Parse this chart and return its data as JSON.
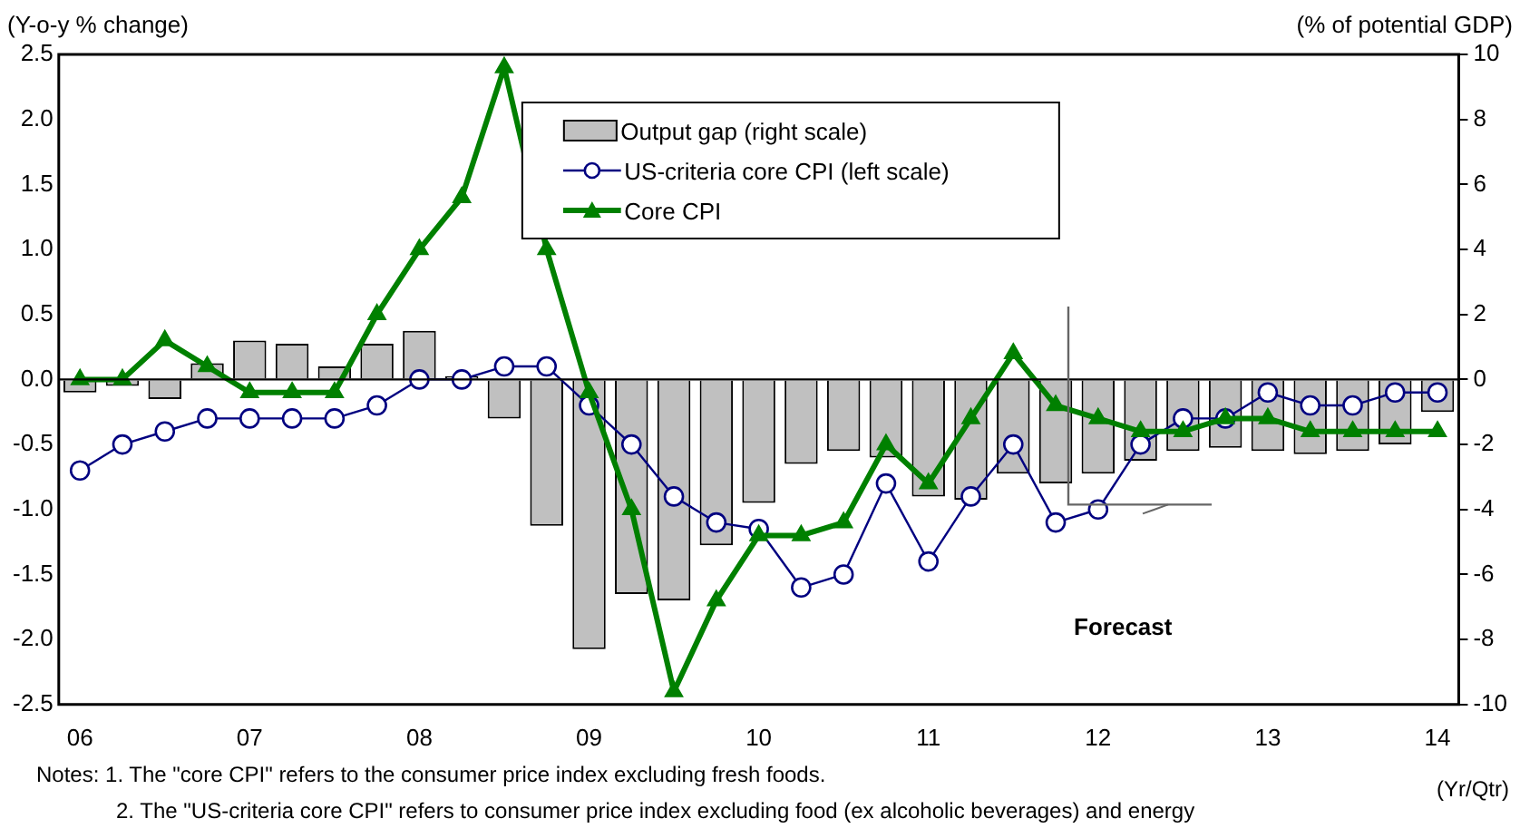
{
  "chart_data": {
    "type": "line",
    "ylabel": "(Y-o-y % change)",
    "y2label": "(% of potential GDP)",
    "xlabel": "(Yr/Qtr)",
    "categories": [
      "06",
      null,
      null,
      null,
      "07",
      null,
      null,
      null,
      "08",
      null,
      null,
      null,
      "09",
      null,
      null,
      null,
      "10",
      null,
      null,
      null,
      "11",
      null,
      null,
      null,
      "12",
      null,
      null,
      null,
      "13",
      null,
      null,
      null,
      "14"
    ],
    "series": [
      {
        "name": "Output gap (right scale)",
        "type": "bar",
        "axis": "y2",
        "color": "#c0c0c0",
        "values": [
          -0.4,
          -0.2,
          -0.6,
          0.5,
          1.2,
          1.1,
          0.4,
          1.1,
          1.5,
          0.1,
          -1.2,
          -4.5,
          -8.3,
          -6.6,
          -6.8,
          -5.1,
          -3.8,
          -2.6,
          -2.2,
          -2.4,
          -3.6,
          -3.7,
          -2.9,
          -3.2,
          -2.9,
          -2.5,
          -2.2,
          -2.1,
          -2.2,
          -2.3,
          -2.2,
          -2.0,
          -1.0
        ]
      },
      {
        "name": "US-criteria core CPI (left scale)",
        "color": "#000080",
        "marker": "circle",
        "values": [
          -0.7,
          -0.5,
          -0.4,
          -0.3,
          -0.3,
          -0.3,
          -0.3,
          -0.2,
          0.0,
          0.0,
          0.1,
          0.1,
          -0.2,
          -0.5,
          -0.9,
          -1.1,
          -1.15,
          -1.6,
          -1.5,
          -0.8,
          -1.4,
          -0.9,
          -0.5,
          -1.1,
          -1.0,
          -0.5,
          -0.3,
          -0.3,
          -0.1,
          -0.2,
          -0.2,
          -0.1,
          -0.1
        ]
      },
      {
        "name": "Core CPI",
        "color": "#008000",
        "marker": "triangle",
        "values": [
          0.0,
          0.0,
          0.3,
          0.1,
          -0.1,
          -0.1,
          -0.1,
          0.5,
          1.0,
          1.4,
          2.4,
          1.0,
          -0.1,
          -1.0,
          -2.4,
          -1.7,
          -1.2,
          -1.2,
          -1.1,
          -0.5,
          -0.8,
          -0.3,
          0.2,
          -0.2,
          -0.3,
          -0.4,
          -0.4,
          -0.3,
          -0.3,
          -0.4,
          -0.4,
          -0.4,
          -0.4
        ]
      }
    ],
    "ylim": [
      -2.5,
      2.5
    ],
    "yticks": [
      -2.5,
      {
        "value": -2,
        "label": "-2.0"
      },
      -1.5,
      {
        "value": -1,
        "label": "-1.0"
      },
      -0.5,
      {
        "value": 0,
        "label": "0.0"
      },
      0.5,
      {
        "value": 1,
        "label": "1.0"
      },
      1.5,
      {
        "value": 2,
        "label": "2.0"
      },
      2.5
    ],
    "y2lim": [
      -10,
      10
    ],
    "y2ticks": [
      -10,
      -8,
      -6,
      -4,
      -2,
      0,
      2,
      4,
      6,
      8,
      10
    ],
    "legend": "top",
    "annotations": [
      "Forecast",
      "Notes: 1. The \"core CPI\" refers to the consumer price index excluding fresh foods.",
      "2. The \"US-criteria core CPI\" refers to consumer price index excluding food (ex alcoholic beverages) and energy"
    ]
  }
}
